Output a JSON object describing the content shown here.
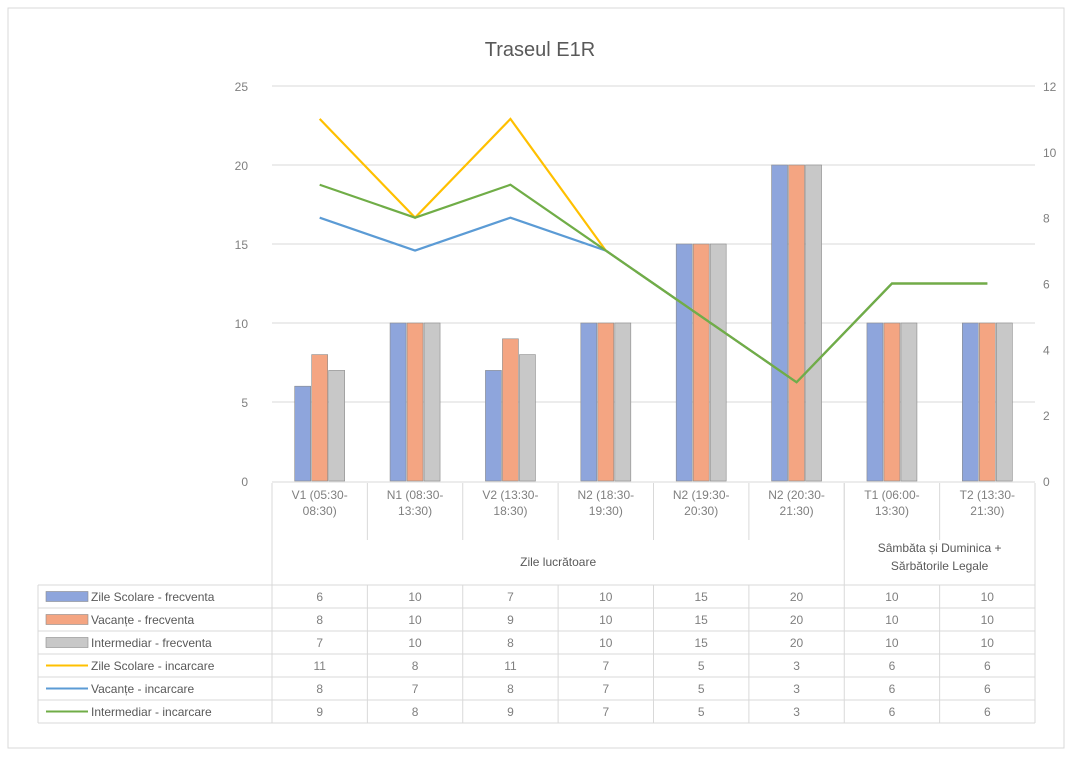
{
  "chart_data": {
    "type": "bar",
    "title": "Traseul  E1R",
    "categories": [
      [
        "V1 (05:30-",
        "08:30)"
      ],
      [
        "N1 (08:30-",
        "13:30)"
      ],
      [
        "V2 (13:30-",
        "18:30)"
      ],
      [
        "N2 (18:30-",
        "19:30)"
      ],
      [
        "N2 (19:30-",
        "20:30)"
      ],
      [
        "N2 (20:30-",
        "21:30)"
      ],
      [
        "T1 (06:00-",
        "13:30)"
      ],
      [
        "T2 (13:30-",
        "21:30)"
      ]
    ],
    "groups": [
      {
        "label": [
          "Zile lucrătoare"
        ],
        "span": 6
      },
      {
        "label": [
          "Sâmbăta și Duminica +",
          "Sărbătorile Legale"
        ],
        "span": 2
      }
    ],
    "y_left": {
      "min": 0,
      "max": 25,
      "ticks": [
        0,
        5,
        10,
        15,
        20,
        25
      ]
    },
    "y_right": {
      "min": 0,
      "max": 12,
      "ticks": [
        0,
        2,
        4,
        6,
        8,
        10,
        12
      ]
    },
    "grid": true,
    "legend": "data-table",
    "series": [
      {
        "name": "Zile Scolare - frecventa",
        "kind": "bar",
        "axis": "left",
        "color": "#8ea5dc",
        "values": [
          6,
          10,
          7,
          10,
          15,
          20,
          10,
          10
        ]
      },
      {
        "name": "Vacanțe - frecventa",
        "kind": "bar",
        "axis": "left",
        "color": "#f4a582",
        "values": [
          8,
          10,
          9,
          10,
          15,
          20,
          10,
          10
        ]
      },
      {
        "name": "Intermediar - frecventa",
        "kind": "bar",
        "axis": "left",
        "color": "#c8c8c8",
        "values": [
          7,
          10,
          8,
          10,
          15,
          20,
          10,
          10
        ]
      },
      {
        "name": "Zile Scolare - incarcare",
        "kind": "line",
        "axis": "right",
        "color": "#ffc000",
        "values": [
          11,
          8,
          11,
          7,
          5,
          3,
          6,
          6
        ]
      },
      {
        "name": "Vacanțe - incarcare",
        "kind": "line",
        "axis": "right",
        "color": "#5b9bd5",
        "values": [
          8,
          7,
          8,
          7,
          5,
          3,
          6,
          6
        ]
      },
      {
        "name": "Intermediar - incarcare",
        "kind": "line",
        "axis": "right",
        "color": "#70ad47",
        "values": [
          9,
          8,
          9,
          7,
          5,
          3,
          6,
          6
        ]
      }
    ]
  }
}
